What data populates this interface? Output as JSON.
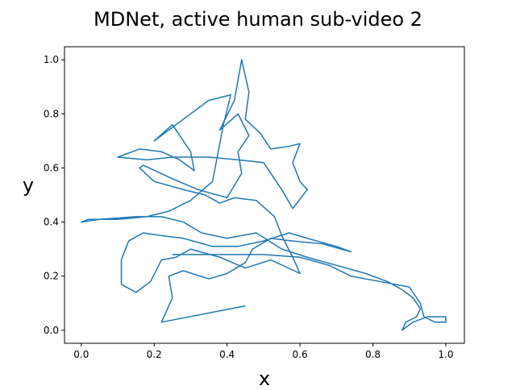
{
  "chart_data": {
    "type": "line",
    "title": "MDNet, active human sub-video 2",
    "x_label": "x",
    "y_label": "y",
    "xlim": [
      -0.046,
      1.051
    ],
    "ylim": [
      -0.048,
      1.048
    ],
    "xticks": [
      {
        "value": 0,
        "label": "0.0"
      },
      0.2,
      0.4,
      0.6,
      0.8,
      {
        "value": 1,
        "label": "1.0"
      }
    ],
    "yticks": [
      {
        "value": 0,
        "label": "0.0"
      },
      0.2,
      0.4,
      0.6,
      0.8,
      {
        "value": 1,
        "label": "1.0"
      }
    ],
    "series": [
      {
        "color": "#1f77b4",
        "x": [
          0.45,
          0.22,
          0.25,
          0.24,
          0.28,
          0.35,
          0.4,
          0.45,
          0.47,
          0.52,
          0.58,
          0.66,
          0.74,
          0.7,
          0.62,
          0.57,
          0.5,
          0.43,
          0.36,
          0.28,
          0.22,
          0.17,
          0.13,
          0.11,
          0.11,
          0.15,
          0.19,
          0.22,
          0.26,
          0.3,
          0.38,
          0.45,
          0.52,
          0.6,
          0.58,
          0.55,
          0.53,
          0.48,
          0.42,
          0.38,
          0.34,
          0.28,
          0.2,
          0.16,
          0.17,
          0.25,
          0.32,
          0.4,
          0.44,
          0.43,
          0.46,
          0.43,
          0.38,
          0.42,
          0.44,
          0.46,
          0.45,
          0.49,
          0.52,
          0.57,
          0.6,
          0.58,
          0.6,
          0.62,
          0.58,
          0.55,
          0.5,
          0.43,
          0.35,
          0.25,
          0.18,
          0.1,
          0.16,
          0.22,
          0.27,
          0.31,
          0.3,
          0.25,
          0.2,
          0.35,
          0.41,
          0.39,
          0.36,
          0.3,
          0.24,
          0.18,
          0.1,
          0.02,
          0.0,
          0.05,
          0.15,
          0.22,
          0.28,
          0.33,
          0.4,
          0.48,
          0.55,
          0.62,
          0.7,
          0.78,
          0.84,
          0.88,
          0.91,
          0.93,
          0.92,
          0.89,
          0.88,
          0.91,
          0.95,
          1.0,
          1.0,
          0.97,
          0.94,
          0.93,
          0.9,
          0.82,
          0.74,
          0.68,
          0.6,
          0.5,
          0.42,
          0.32,
          0.25
        ],
        "values": [
          0.09,
          0.03,
          0.12,
          0.2,
          0.22,
          0.19,
          0.21,
          0.25,
          0.3,
          0.34,
          0.33,
          0.32,
          0.29,
          0.31,
          0.34,
          0.36,
          0.33,
          0.31,
          0.31,
          0.34,
          0.35,
          0.36,
          0.33,
          0.26,
          0.17,
          0.14,
          0.18,
          0.26,
          0.27,
          0.3,
          0.27,
          0.23,
          0.26,
          0.21,
          0.27,
          0.35,
          0.42,
          0.48,
          0.49,
          0.47,
          0.5,
          0.52,
          0.55,
          0.6,
          0.61,
          0.56,
          0.52,
          0.49,
          0.58,
          0.66,
          0.72,
          0.8,
          0.74,
          0.85,
          1.0,
          0.88,
          0.78,
          0.73,
          0.67,
          0.68,
          0.69,
          0.62,
          0.55,
          0.52,
          0.45,
          0.52,
          0.62,
          0.63,
          0.64,
          0.64,
          0.63,
          0.64,
          0.67,
          0.66,
          0.63,
          0.59,
          0.66,
          0.76,
          0.7,
          0.85,
          0.87,
          0.76,
          0.55,
          0.48,
          0.44,
          0.42,
          0.41,
          0.41,
          0.4,
          0.41,
          0.42,
          0.42,
          0.4,
          0.36,
          0.34,
          0.36,
          0.3,
          0.27,
          0.24,
          0.21,
          0.18,
          0.15,
          0.12,
          0.08,
          0.05,
          0.03,
          0.0,
          0.03,
          0.05,
          0.05,
          0.03,
          0.03,
          0.05,
          0.1,
          0.16,
          0.18,
          0.2,
          0.24,
          0.27,
          0.28,
          0.28,
          0.28,
          0.28
        ]
      }
    ]
  }
}
